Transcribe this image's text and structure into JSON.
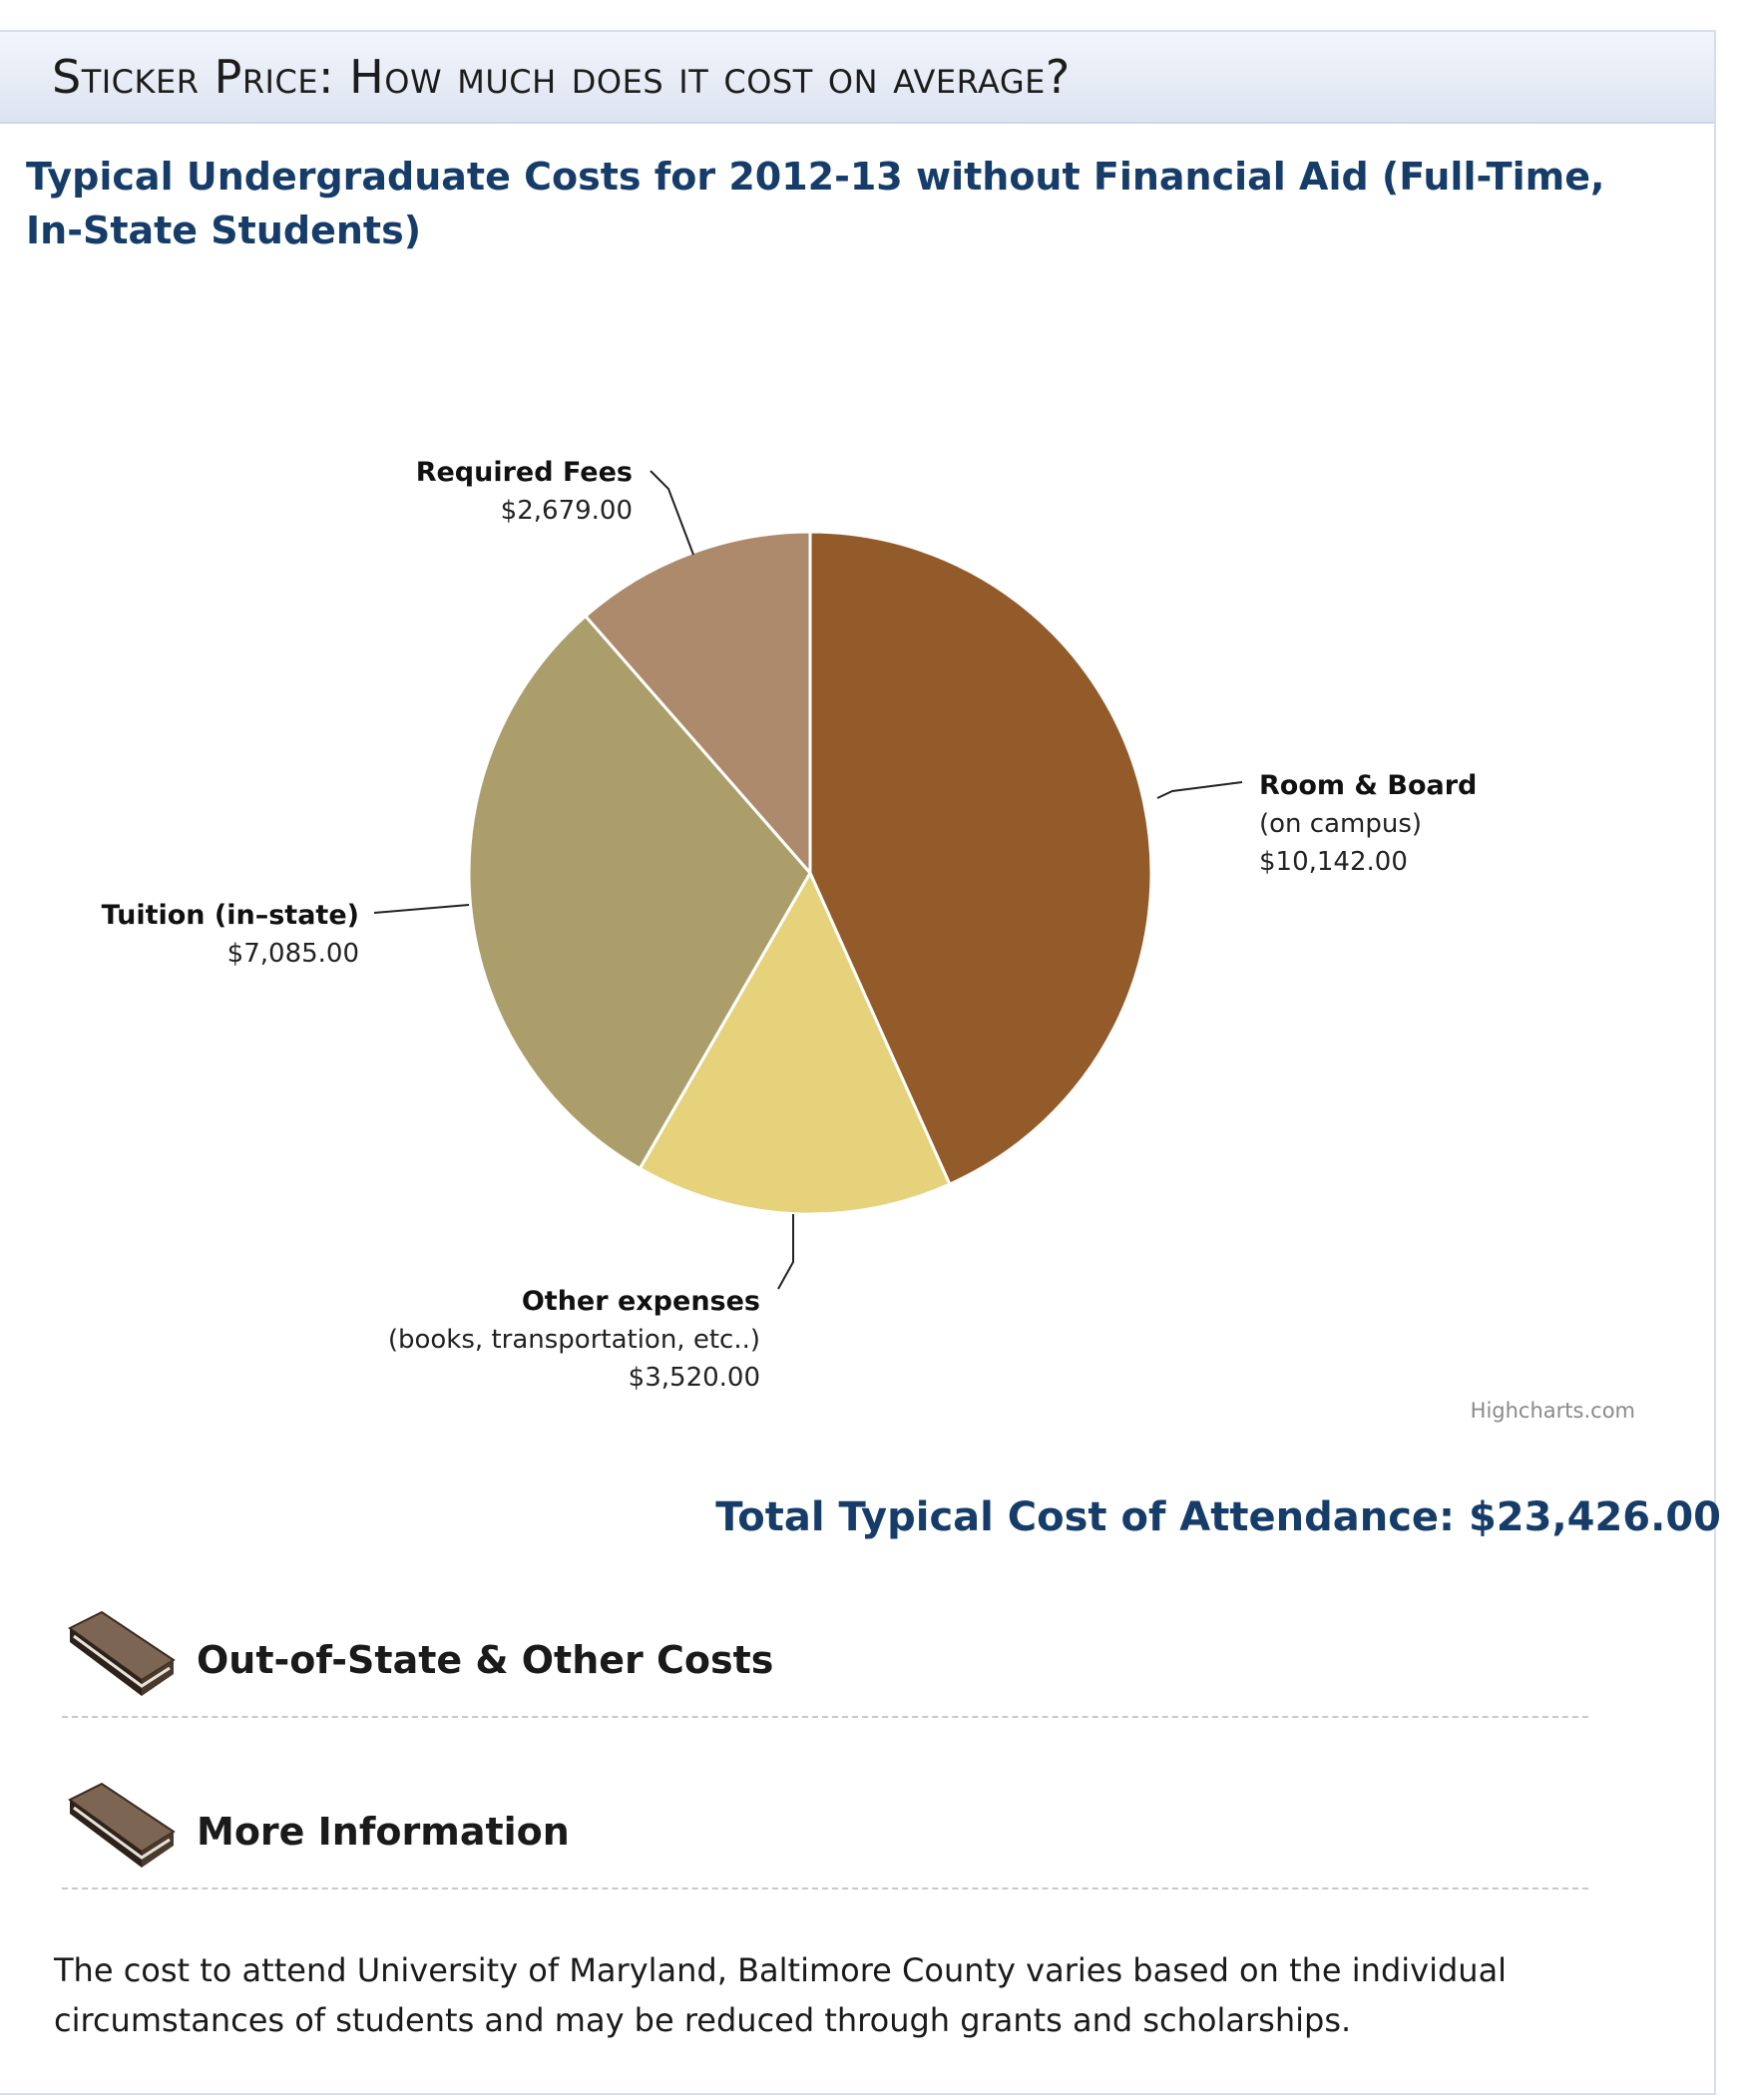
{
  "header": {
    "section_title": "Sticker Price: How much does it cost on average?"
  },
  "chart_data": {
    "type": "pie",
    "title": "Typical Undergraduate Costs for 2012-13 without Financial Aid (Full-Time, In-State Students)",
    "slices": [
      {
        "name": "Room & Board",
        "sub": "(on campus)",
        "value": 10142.0,
        "label": "$10,142.00",
        "color": "#935b2a"
      },
      {
        "name": "Other expenses",
        "sub": "(books, transportation, etc..)",
        "value": 3520.0,
        "label": "$3,520.00",
        "color": "#e5d27b"
      },
      {
        "name": "Tuition (in–state)",
        "sub": "",
        "value": 7085.0,
        "label": "$7,085.00",
        "color": "#ab9e6b"
      },
      {
        "name": "Required Fees",
        "sub": "",
        "value": 2679.0,
        "label": "$2,679.00",
        "color": "#ad8a6b"
      }
    ],
    "start_angle_deg": 0,
    "direction": "clockwise",
    "credit": "Highcharts.com"
  },
  "total": {
    "text": "Total Typical Cost of Attendance: $23,426.00"
  },
  "links": [
    {
      "label": "Out-of-State & Other Costs",
      "icon": "book-icon"
    },
    {
      "label": "More Information",
      "icon": "book-icon"
    }
  ],
  "description": "The cost to attend University of Maryland, Baltimore County varies based on the individual circumstances of students and may be reduced through grants and scholarships."
}
